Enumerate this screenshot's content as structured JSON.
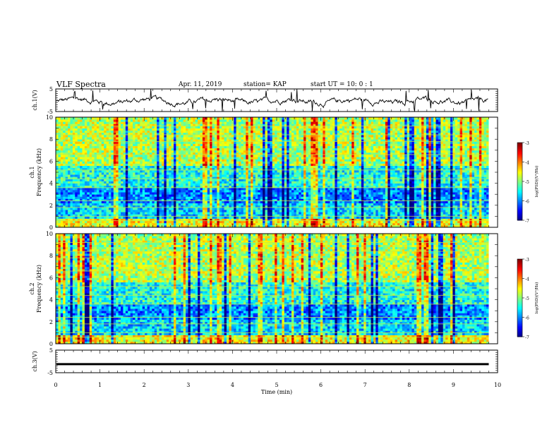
{
  "header": {
    "title": "VLF Spectra",
    "date": "Apr. 11, 2019",
    "station": "station= KAP",
    "start": "start  UT =   10: 0  : 1"
  },
  "chart_data": [
    {
      "type": "line",
      "panel": "ch1-waveform",
      "ylabel": "ch.1(V)",
      "ylim": [
        -5,
        5
      ],
      "yticks": [
        "5",
        "-5"
      ],
      "xlim": [
        0,
        9.8
      ],
      "series_color": "#000000"
    },
    {
      "type": "heatmap",
      "panel": "ch1-spectrogram",
      "ylabel_line1": "ch.1",
      "ylabel_line2": "Frequency (kHz)",
      "ylim": [
        0,
        10
      ],
      "yticks": [
        "0",
        "2",
        "4",
        "6",
        "8",
        "10"
      ],
      "xlim": [
        0,
        9.8
      ],
      "colorbar": {
        "label": "log(PSD)(V²/Hz)",
        "range": [
          -7,
          -3
        ],
        "ticks": [
          "-3",
          "-4",
          "-5",
          "-6",
          "-7"
        ]
      }
    },
    {
      "type": "heatmap",
      "panel": "ch2-spectrogram",
      "ylabel_line1": "ch.2",
      "ylabel_line2": "Frequency (kHz)",
      "ylim": [
        0,
        10
      ],
      "yticks": [
        "0",
        "2",
        "4",
        "6",
        "8",
        "10"
      ],
      "xlim": [
        0,
        9.8
      ],
      "colorbar": {
        "label": "log(PSD)(V²/Hz)",
        "range": [
          -7,
          -3
        ],
        "ticks": [
          "-3",
          "-4",
          "-5",
          "-6",
          "-7"
        ]
      }
    },
    {
      "type": "line",
      "panel": "ch3-waveform",
      "ylabel": "ch.3(V)",
      "ylim": [
        -5,
        5
      ],
      "yticks": [
        "5",
        "-5"
      ],
      "xlim": [
        0,
        9.8
      ],
      "values_constant": -1.2,
      "series_color": "#000000"
    }
  ],
  "xaxis": {
    "label": "Time (min)",
    "range": [
      0,
      10
    ],
    "ticks": [
      "0",
      "1",
      "2",
      "3",
      "4",
      "5",
      "6",
      "7",
      "8",
      "9",
      "10"
    ]
  }
}
